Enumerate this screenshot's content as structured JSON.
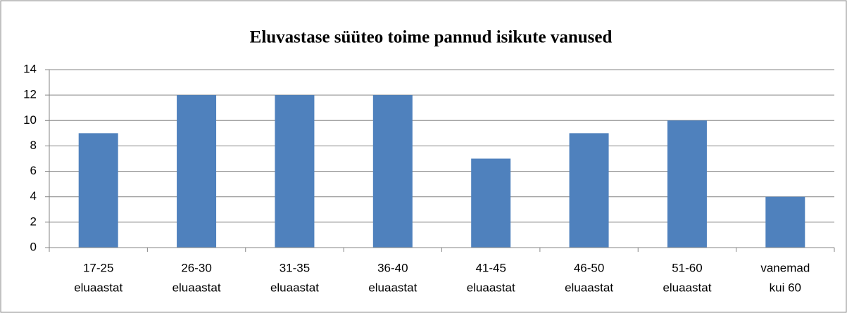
{
  "chart_data": {
    "type": "bar",
    "title": "Eluvastase süüteo toime pannud isikute vanused",
    "categories": [
      [
        "17-25",
        "eluaastat"
      ],
      [
        "26-30",
        "eluaastat"
      ],
      [
        "31-35",
        "eluaastat"
      ],
      [
        "36-40",
        "eluaastat"
      ],
      [
        "41-45",
        "eluaastat"
      ],
      [
        "46-50",
        "eluaastat"
      ],
      [
        "51-60",
        "eluaastat"
      ],
      [
        "vanemad",
        "kui 60"
      ]
    ],
    "values": [
      9,
      12,
      12,
      12,
      7,
      9,
      10,
      4
    ],
    "color": "#4f81bd",
    "ylim": [
      0,
      14
    ],
    "yticks": [
      0,
      2,
      4,
      6,
      8,
      10,
      12,
      14
    ],
    "grid": true
  }
}
